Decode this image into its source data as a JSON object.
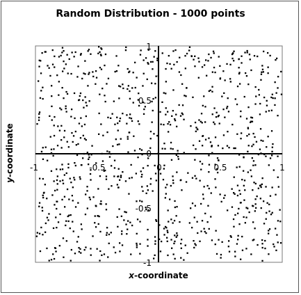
{
  "chart_data": {
    "type": "scatter",
    "title": "Random Distribution - 1000 points",
    "xlabel_italic": "x",
    "xlabel_rest": "-coordinate",
    "ylabel_italic": "y",
    "ylabel_rest": "-coordinate",
    "xlim": [
      -1,
      1
    ],
    "ylim": [
      -1,
      1
    ],
    "x_ticks": [
      "-1",
      "-0.5",
      "0",
      "0.5",
      "1"
    ],
    "y_ticks": [
      "1",
      "0.5",
      "0",
      "-0.5",
      "-1"
    ],
    "grid": false,
    "point_count": 1000,
    "seed": 1000,
    "marker_color": "#000000",
    "axis_color": "#000000"
  }
}
